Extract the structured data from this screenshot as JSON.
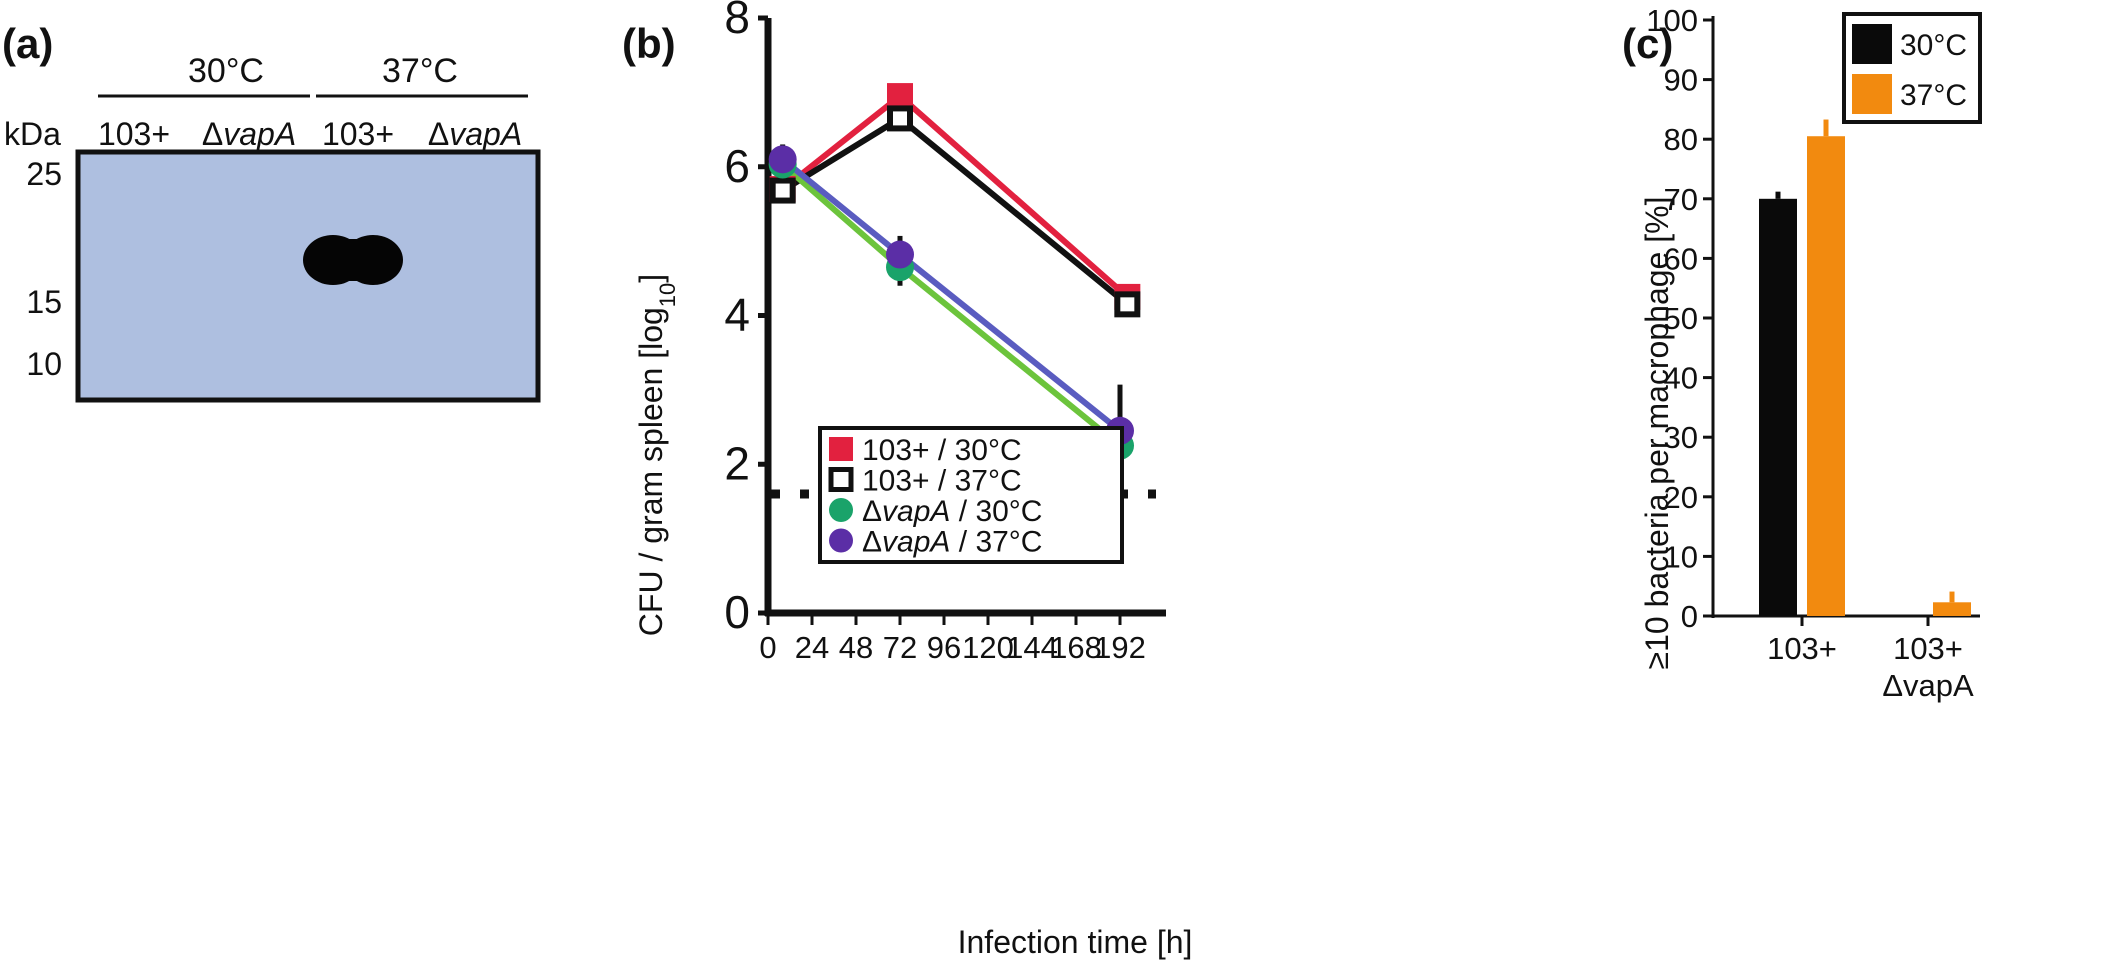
{
  "panels": {
    "a": {
      "label": "(a)"
    },
    "b": {
      "label": "(b)"
    },
    "c": {
      "label": "(c)"
    }
  },
  "blot": {
    "temp_groups": [
      "30°C",
      "37°C"
    ],
    "lanes": [
      {
        "delta": "",
        "name": "103+"
      },
      {
        "delta": "Δ",
        "name": "vapA"
      },
      {
        "delta": "",
        "name": "103+"
      },
      {
        "delta": "Δ",
        "name": "vapA"
      }
    ],
    "kda_label": "kDa",
    "markers": [
      "25",
      "15",
      "10"
    ],
    "membrane_color": "#aebfe0",
    "band_color": "#050505"
  },
  "chart_data": [
    {
      "panel": "b",
      "type": "line",
      "xlabel": "Infection time [h]",
      "ylabel_main": "CFU / gram spleen [log",
      "ylabel_sub": "10",
      "ylabel_end": "]",
      "xticks": [
        0,
        24,
        48,
        72,
        96,
        120,
        144,
        168,
        192
      ],
      "yticks": [
        0,
        2,
        4,
        6,
        8
      ],
      "xlim": [
        0,
        216
      ],
      "ylim": [
        0,
        8
      ],
      "detection_limit": 1.6,
      "legend_position": "bottom-left",
      "series": [
        {
          "delta": "",
          "strain": "103+",
          "rest": " / 30°C",
          "italic": false,
          "color": "#e2213f",
          "line_color": "#e2213f",
          "marker": "square",
          "x": [
            8,
            72,
            196
          ],
          "y": [
            5.7,
            6.95,
            4.25
          ],
          "err": [
            0.12,
            0.15,
            0.12
          ]
        },
        {
          "delta": "",
          "strain": "103+",
          "rest": " / 37°C",
          "italic": false,
          "color": "#111111",
          "line_color": "#111111",
          "marker": "open-square",
          "x": [
            8,
            72,
            196
          ],
          "y": [
            5.68,
            6.65,
            4.15
          ],
          "err": [
            0.12,
            0.15,
            0.15
          ]
        },
        {
          "delta": "Δ",
          "strain": "vapA",
          "rest": " / 30°C",
          "italic": true,
          "color": "#1aa36a",
          "line_color": "#6cc43c",
          "marker": "circle",
          "x": [
            8,
            72,
            192
          ],
          "y": [
            6.03,
            4.65,
            2.25
          ],
          "err": [
            0.2,
            0.25,
            0.4
          ]
        },
        {
          "delta": "Δ",
          "strain": "vapA",
          "rest": " / 37°C",
          "italic": true,
          "color": "#5b2ea6",
          "line_color": "#5a5cc0",
          "marker": "circle",
          "x": [
            8,
            72,
            192
          ],
          "y": [
            6.1,
            4.82,
            2.45
          ],
          "err": [
            0.2,
            0.25,
            0.62
          ]
        }
      ]
    },
    {
      "panel": "c",
      "type": "bar",
      "ylabel": "≥10 bacteria per macrophage [%]",
      "categories": [
        {
          "line1": "103+",
          "line2": ""
        },
        {
          "line1": "103+",
          "line2": "ΔvapA"
        }
      ],
      "yticks": [
        0,
        10,
        20,
        30,
        40,
        50,
        60,
        70,
        80,
        90,
        100
      ],
      "ylim": [
        0,
        100
      ],
      "legend_position": "top-right",
      "series": [
        {
          "name": "30°C",
          "color": "#0a0a0a",
          "values": [
            70,
            0
          ],
          "err": [
            1.2,
            0
          ]
        },
        {
          "name": "37°C",
          "color": "#f28a0f",
          "values": [
            80.5,
            2.3
          ],
          "err": [
            2.8,
            1.8
          ]
        }
      ]
    }
  ]
}
